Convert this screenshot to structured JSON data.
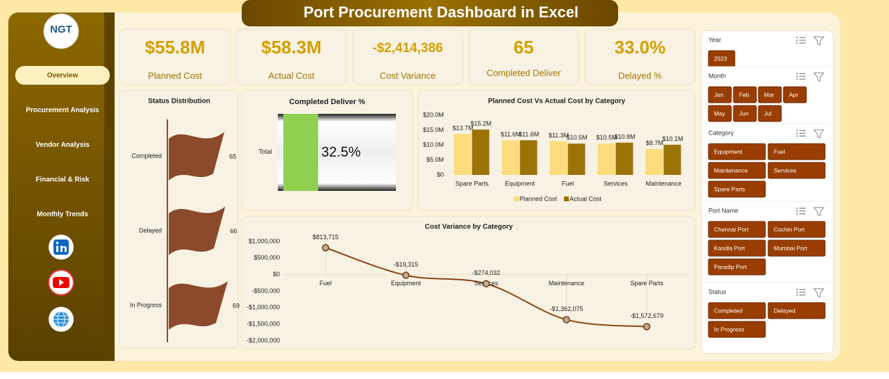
{
  "header": {
    "title": "Port Procurement Dashboard in Excel",
    "logo": "NGT"
  },
  "nav": [
    "Overview",
    "Procurement Analysis",
    "Vendor Analysis",
    "Financial & Risk",
    "Monthly Trends"
  ],
  "kpis": [
    {
      "value": "$55.8M",
      "label": "Planned Cost"
    },
    {
      "value": "$58.3M",
      "label": "Actual Cost"
    },
    {
      "value": "-$2,414,386",
      "label": "Cost Variance"
    },
    {
      "value": "65",
      "label": "Completed Deliver"
    },
    {
      "value": "33.0%",
      "label": "Delayed %"
    }
  ],
  "chart_data": [
    {
      "type": "bar",
      "orientation": "horizontal",
      "title": "Status Distribution",
      "categories": [
        "Completed",
        "Delayed",
        "In Progress"
      ],
      "values": [
        65,
        66,
        69
      ],
      "color": "#8b4a2b"
    },
    {
      "type": "progress",
      "title": "Completed Deliver %",
      "categories": [
        "Total"
      ],
      "values": [
        32.5
      ],
      "value_labels": [
        "32.5%"
      ],
      "xlim": [
        0,
        100
      ],
      "color": "#8fd14f"
    },
    {
      "type": "bar",
      "title": "Planned Cost Vs Actual Cost by Category",
      "categories": [
        "Spare Parts",
        "Equipment",
        "Fuel",
        "Services",
        "Maintenance"
      ],
      "series": [
        {
          "name": "Planned Cost",
          "color": "#fddc7c",
          "values": [
            13.7,
            11.6,
            11.3,
            10.5,
            8.7
          ],
          "value_labels": [
            "$13.7M",
            "$11.6M",
            "$11.3M",
            "$10.5M",
            "$8.7M"
          ]
        },
        {
          "name": "Actual Cost",
          "color": "#9c7405",
          "values": [
            15.2,
            11.6,
            10.5,
            10.8,
            10.1
          ],
          "value_labels": [
            "$15.2M",
            "$11.6M",
            "$10.5M",
            "$10.8M",
            "$10.1M"
          ]
        }
      ],
      "ylim": [
        0,
        20
      ],
      "yticks": [
        {
          "value": 0,
          "label": "$0"
        },
        {
          "value": 5,
          "label": "$5.0M"
        },
        {
          "value": 10,
          "label": "$10.0M"
        },
        {
          "value": 15,
          "label": "$15.0M"
        },
        {
          "value": 20,
          "label": "$20.0M"
        }
      ],
      "legend": "bottom"
    },
    {
      "type": "line",
      "title": "Cost Variance by Category",
      "categories": [
        "Fuel",
        "Equipment",
        "Services",
        "Maintenance",
        "Spare Parts"
      ],
      "values": [
        813715,
        -19315,
        -274032,
        -1362075,
        -1572679
      ],
      "value_labels": [
        "$813,715",
        "-$19,315",
        "-$274,032",
        "-$1,362,075",
        "-$1,572,679"
      ],
      "color": "#8b4513",
      "ylim": [
        -2000000,
        1000000
      ],
      "yticks": [
        {
          "value": 1000000,
          "label": "$1,000,000"
        },
        {
          "value": 500000,
          "label": "$500,000"
        },
        {
          "value": 0,
          "label": "$0"
        },
        {
          "value": -500000,
          "label": "-$500,000"
        },
        {
          "value": -1000000,
          "label": "-$1,000,000"
        },
        {
          "value": -1500000,
          "label": "-$1,500,000"
        },
        {
          "value": -2000000,
          "label": "-$2,000,000"
        }
      ]
    }
  ],
  "slicers": [
    {
      "title": "Year",
      "items": [
        "2023"
      ]
    },
    {
      "title": "Month",
      "items": [
        "Jan",
        "Feb",
        "Mar",
        "Apr",
        "May",
        "Jun",
        "Jul"
      ]
    },
    {
      "title": "Category",
      "items": [
        "Equipment",
        "Fuel",
        "Maintenance",
        "Services",
        "Spare Parts"
      ]
    },
    {
      "title": "Port Name",
      "items": [
        "Chennai Port",
        "Cochin Port",
        "Kandla Port",
        "Mumbai Port",
        "Paradip Port"
      ]
    },
    {
      "title": "Status",
      "items": [
        "Completed",
        "Delayed",
        "In Progress"
      ]
    }
  ]
}
